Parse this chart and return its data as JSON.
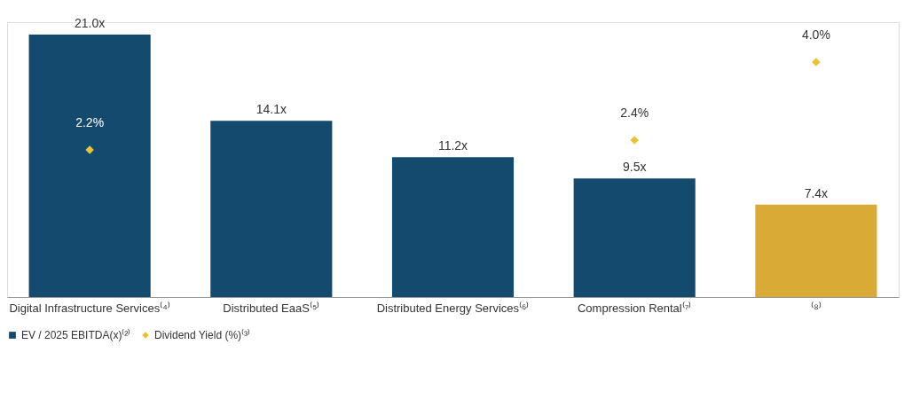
{
  "chart_data": {
    "type": "bar",
    "categories": [
      "Digital Infrastructure Services⁽⁴⁾",
      "Distributed EaaS⁽⁵⁾",
      "Distributed Energy Services⁽⁶⁾",
      "Compression Rental⁽⁷⁾",
      "⁽⁸⁾"
    ],
    "series": [
      {
        "name": "EV / 2025 EBITDA(x)⁽²⁾",
        "color": "#134a6e",
        "colors": [
          "#134a6e",
          "#134a6e",
          "#134a6e",
          "#134a6e",
          "#d9aa35"
        ],
        "values": [
          21.0,
          14.1,
          11.2,
          9.5,
          7.4
        ],
        "value_labels": [
          "21.0x",
          "14.1x",
          "11.2x",
          "9.5x",
          "7.4x"
        ]
      },
      {
        "name": "Dividend Yield (%)⁽³⁾",
        "type": "scatter",
        "axis": "y2",
        "color": "#e8c332",
        "marker": "diamond",
        "values": [
          2.2,
          null,
          null,
          2.4,
          4.0
        ],
        "value_labels": [
          "2.2%",
          null,
          null,
          "2.4%",
          "4.0%"
        ]
      }
    ],
    "tick_labels": "x",
    "grid": false,
    "legend": "bottom"
  }
}
